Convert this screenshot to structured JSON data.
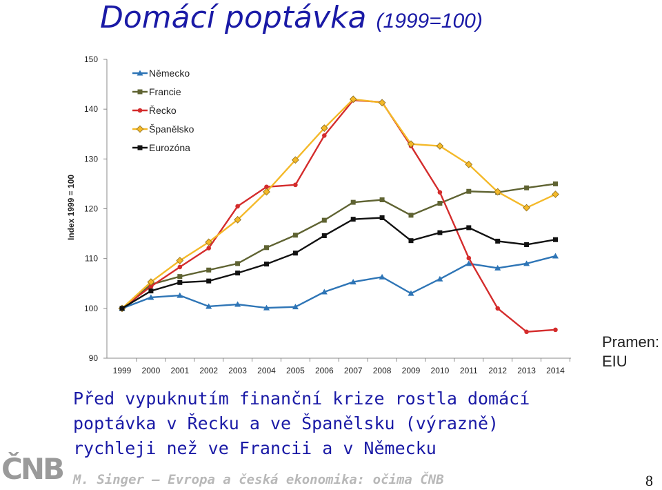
{
  "slide": {
    "title": "Domácí poptávka",
    "title_suffix": "(1999=100)",
    "source_line1": "Pramen:",
    "source_line2": "EIU",
    "summary_line1": "Před vypuknutím finanční krize rostla domácí",
    "summary_line2": "poptávka v Řecku a ve Španělsku (výrazně)",
    "summary_line3": "rychleji než ve Francii a v Německu",
    "logo_text": "ČNB",
    "footer": "M. Singer – Evropa a česká ekonomika: očima ČNB",
    "page_number": "8"
  },
  "chart_data": {
    "type": "line",
    "title": "",
    "xlabel": "",
    "ylabel": "Index 1999 = 100",
    "ylim": [
      90,
      150
    ],
    "yticks": [
      90,
      100,
      110,
      120,
      130,
      140,
      150
    ],
    "grid": false,
    "legend_position": "top-left",
    "x": [
      "1999",
      "2000",
      "2001",
      "2002",
      "2003",
      "2004",
      "2005",
      "2006",
      "2007",
      "2008",
      "2009",
      "2010",
      "2011",
      "2012",
      "2013",
      "2014"
    ],
    "series": [
      {
        "name": "Německo",
        "color": "#2e75b6",
        "marker": "triangle",
        "values": [
          100,
          102.2,
          102.6,
          100.4,
          100.8,
          100.1,
          100.3,
          103.3,
          105.3,
          106.3,
          103.0,
          105.9,
          109.0,
          108.1,
          109.0,
          110.5
        ]
      },
      {
        "name": "Francie",
        "color": "#5f6332",
        "marker": "square",
        "values": [
          100,
          104.8,
          106.4,
          107.7,
          109.0,
          112.2,
          114.7,
          117.7,
          121.3,
          121.8,
          118.7,
          121.1,
          123.5,
          123.3,
          124.2,
          125.0
        ]
      },
      {
        "name": "Řecko",
        "color": "#d42c2c",
        "marker": "circle",
        "values": [
          100,
          104.4,
          108.3,
          112.1,
          120.5,
          124.4,
          124.8,
          134.7,
          141.8,
          141.4,
          132.6,
          123.3,
          110.1,
          100.0,
          95.3,
          95.7
        ]
      },
      {
        "name": "Španělsko",
        "color": "#f4b929",
        "marker": "diamond",
        "values": [
          100,
          105.3,
          109.6,
          113.3,
          117.8,
          123.4,
          129.8,
          136.2,
          142.0,
          141.3,
          133.0,
          132.6,
          128.9,
          123.4,
          120.2,
          122.9
        ]
      },
      {
        "name": "Eurozóna",
        "color": "#111111",
        "marker": "square",
        "values": [
          100,
          103.5,
          105.2,
          105.5,
          107.1,
          108.9,
          111.1,
          114.6,
          117.9,
          118.2,
          113.6,
          115.2,
          116.2,
          113.5,
          112.8,
          113.8
        ]
      }
    ]
  }
}
